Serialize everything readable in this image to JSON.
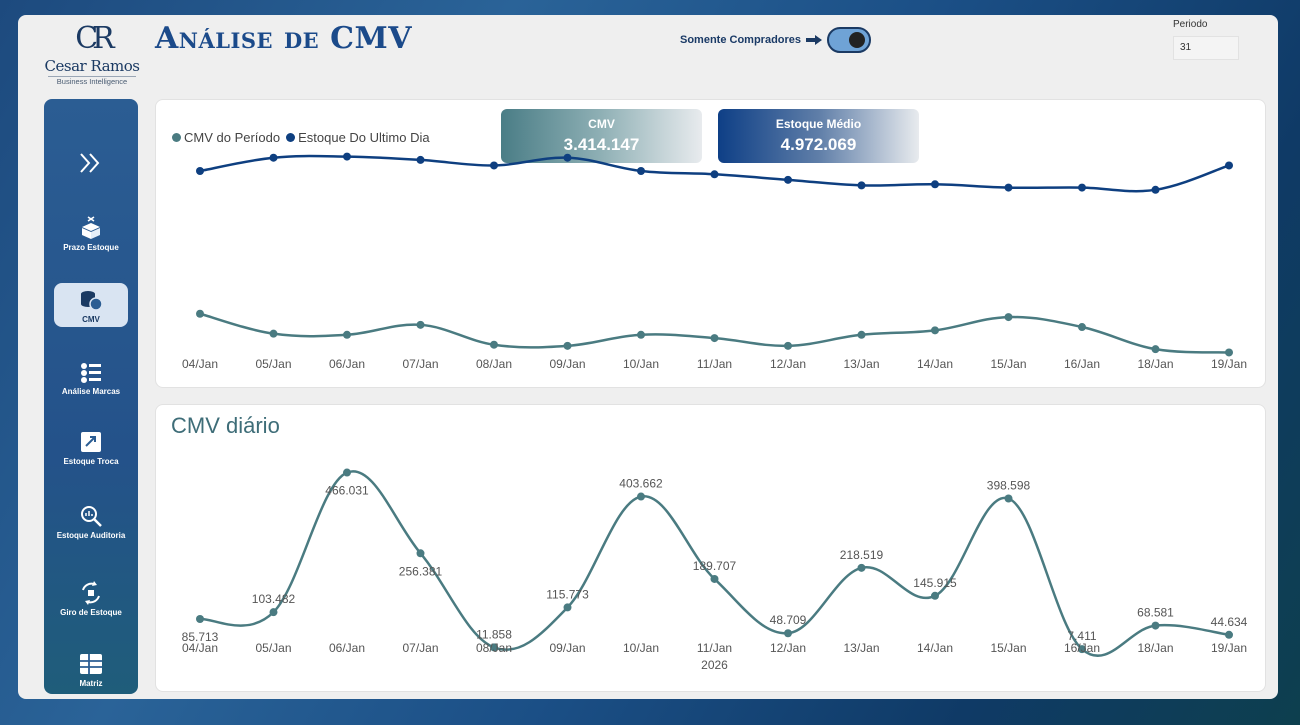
{
  "header": {
    "logo_mark": "CR",
    "logo_name": "Cesar Ramos",
    "logo_sub": "Business Intelligence",
    "title": "Análise de CMV",
    "toggle_label": "Somente Compradores",
    "periodo_label": "Periodo",
    "periodo_value": "31"
  },
  "sidebar": {
    "items": [
      {
        "label": "Prazo Estoque",
        "icon": "box-clock-icon"
      },
      {
        "label": "CMV",
        "icon": "coins-icon",
        "active": true
      },
      {
        "label": "Análise Marcas",
        "icon": "list-icon"
      },
      {
        "label": "Estoque Troca",
        "icon": "exchange-icon"
      },
      {
        "label": "Estoque Auditoria",
        "icon": "magnifier-icon"
      },
      {
        "label": "Giro de Estoque",
        "icon": "cycle-icon"
      },
      {
        "label": "Matriz",
        "icon": "grid-icon"
      }
    ]
  },
  "kpis": {
    "cmv_label": "CMV",
    "cmv_value": "3.414.147",
    "estoque_label": "Estoque Médio",
    "estoque_value": "4.972.069"
  },
  "colors": {
    "cmv_periodo": "#4a7b81",
    "estoque": "#0e3f80",
    "cmv_diario": "#4a7b81"
  },
  "chart_data": [
    {
      "type": "line",
      "categories": [
        "04/Jan",
        "05/Jan",
        "06/Jan",
        "07/Jan",
        "08/Jan",
        "09/Jan",
        "10/Jan",
        "11/Jan",
        "12/Jan",
        "13/Jan",
        "14/Jan",
        "15/Jan",
        "16/Jan",
        "18/Jan",
        "19/Jan"
      ],
      "series": [
        {
          "name": "CMV do Período",
          "values": [
            3.48,
            3.3,
            3.29,
            3.38,
            3.2,
            3.19,
            3.29,
            3.26,
            3.19,
            3.29,
            3.33,
            3.45,
            3.36,
            3.16,
            3.13
          ]
        },
        {
          "name": "Estoque Do Ultimo Dia",
          "values": [
            4.77,
            4.89,
            4.9,
            4.87,
            4.82,
            4.89,
            4.77,
            4.74,
            4.69,
            4.64,
            4.65,
            4.62,
            4.62,
            4.6,
            4.82
          ]
        }
      ],
      "ylim": [
        2.8,
        5.05
      ]
    },
    {
      "type": "line",
      "title": "CMV diário",
      "categories": [
        "04/Jan",
        "05/Jan",
        "06/Jan",
        "07/Jan",
        "08/Jan",
        "09/Jan",
        "10/Jan",
        "11/Jan",
        "12/Jan",
        "13/Jan",
        "14/Jan",
        "15/Jan",
        "16/Jan",
        "18/Jan",
        "19/Jan"
      ],
      "year_label": "2026",
      "series": [
        {
          "name": "CMV diário",
          "values": [
            85713,
            103482,
            466031,
            256381,
            11858,
            115773,
            403662,
            189707,
            48709,
            218519,
            145915,
            398598,
            7411,
            68581,
            44634
          ]
        }
      ],
      "labels": [
        "85.713",
        "103.482",
        "466.031",
        "256.381",
        "11.858",
        "115.773",
        "403.662",
        "189.707",
        "48.709",
        "218.519",
        "145.915",
        "398.598",
        "7.411",
        "68.581",
        "44.634"
      ],
      "ylim": [
        0,
        470000
      ]
    }
  ]
}
